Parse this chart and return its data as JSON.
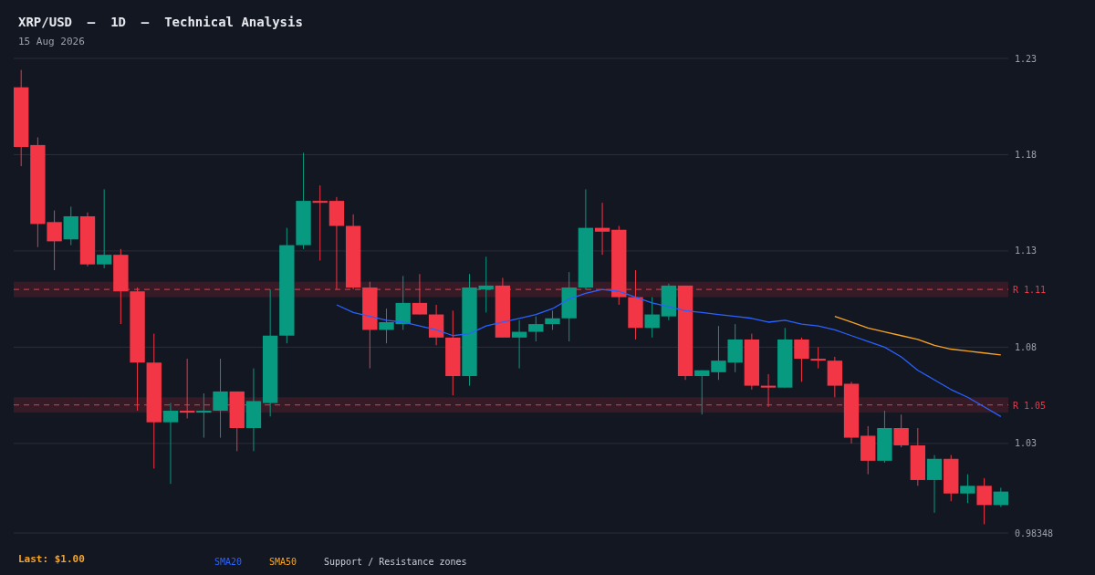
{
  "chart_data": {
    "type": "candlestick",
    "title": "XRP/USD  –  1D  –  Technical Analysis",
    "subtitle": "15 Aug 2026",
    "categories": [
      null,
      null,
      null,
      null,
      null,
      null,
      null,
      null,
      null,
      null,
      null,
      null,
      null,
      null,
      null,
      null,
      null,
      null,
      null,
      null,
      null,
      null,
      null,
      null,
      null,
      null,
      null,
      null,
      null,
      null,
      null,
      null,
      null,
      null,
      null,
      null,
      null,
      null,
      null,
      null,
      null,
      null,
      null,
      null,
      null,
      null,
      null,
      null,
      null,
      null,
      null,
      null,
      null,
      null,
      null,
      null,
      null,
      null,
      null,
      null
    ],
    "ohlc": [
      [
        1.215,
        1.224,
        1.174,
        1.184
      ],
      [
        1.185,
        1.189,
        1.132,
        1.144
      ],
      [
        1.145,
        1.151,
        1.12,
        1.135
      ],
      [
        1.136,
        1.153,
        1.133,
        1.148
      ],
      [
        1.148,
        1.15,
        1.122,
        1.123
      ],
      [
        1.123,
        1.162,
        1.121,
        1.128
      ],
      [
        1.128,
        1.131,
        1.092,
        1.109
      ],
      [
        1.109,
        1.111,
        1.047,
        1.072
      ],
      [
        1.072,
        1.087,
        1.017,
        1.041
      ],
      [
        1.041,
        1.051,
        1.009,
        1.047
      ],
      [
        1.047,
        1.074,
        1.043,
        1.046
      ],
      [
        1.046,
        1.056,
        1.033,
        1.047
      ],
      [
        1.047,
        1.074,
        1.033,
        1.057
      ],
      [
        1.057,
        1.057,
        1.026,
        1.038
      ],
      [
        1.038,
        1.069,
        1.026,
        1.052
      ],
      [
        1.051,
        1.11,
        1.044,
        1.086
      ],
      [
        1.086,
        1.142,
        1.082,
        1.133
      ],
      [
        1.133,
        1.181,
        1.131,
        1.156
      ],
      [
        1.156,
        1.164,
        1.125,
        1.155
      ],
      [
        1.156,
        1.158,
        1.11,
        1.143
      ],
      [
        1.143,
        1.149,
        1.11,
        1.111
      ],
      [
        1.111,
        1.114,
        1.069,
        1.089
      ],
      [
        1.089,
        1.1,
        1.082,
        1.093
      ],
      [
        1.092,
        1.117,
        1.089,
        1.103
      ],
      [
        1.103,
        1.118,
        1.097,
        1.097
      ],
      [
        1.097,
        1.102,
        1.081,
        1.085
      ],
      [
        1.085,
        1.099,
        1.055,
        1.065
      ],
      [
        1.065,
        1.118,
        1.06,
        1.111
      ],
      [
        1.11,
        1.127,
        1.098,
        1.112
      ],
      [
        1.112,
        1.116,
        1.085,
        1.085
      ],
      [
        1.085,
        1.094,
        1.069,
        1.088
      ],
      [
        1.088,
        1.096,
        1.083,
        1.092
      ],
      [
        1.092,
        1.099,
        1.089,
        1.095
      ],
      [
        1.095,
        1.119,
        1.083,
        1.111
      ],
      [
        1.111,
        1.162,
        1.11,
        1.142
      ],
      [
        1.142,
        1.155,
        1.128,
        1.14
      ],
      [
        1.141,
        1.143,
        1.102,
        1.106
      ],
      [
        1.106,
        1.12,
        1.084,
        1.09
      ],
      [
        1.09,
        1.106,
        1.085,
        1.097
      ],
      [
        1.096,
        1.113,
        1.094,
        1.112
      ],
      [
        1.112,
        1.112,
        1.063,
        1.065
      ],
      [
        1.065,
        1.068,
        1.045,
        1.068
      ],
      [
        1.067,
        1.091,
        1.063,
        1.073
      ],
      [
        1.072,
        1.092,
        1.067,
        1.084
      ],
      [
        1.084,
        1.087,
        1.058,
        1.06
      ],
      [
        1.06,
        1.066,
        1.049,
        1.059
      ],
      [
        1.059,
        1.09,
        1.059,
        1.084
      ],
      [
        1.084,
        1.085,
        1.062,
        1.074
      ],
      [
        1.074,
        1.08,
        1.069,
        1.073
      ],
      [
        1.073,
        1.075,
        1.054,
        1.06
      ],
      [
        1.061,
        1.062,
        1.03,
        1.033
      ],
      [
        1.034,
        1.039,
        1.014,
        1.021
      ],
      [
        1.021,
        1.047,
        1.02,
        1.038
      ],
      [
        1.038,
        1.045,
        1.028,
        1.029
      ],
      [
        1.029,
        1.038,
        1.008,
        1.011
      ],
      [
        1.011,
        1.024,
        0.994,
        1.022
      ],
      [
        1.022,
        1.024,
        1.0,
        1.004
      ],
      [
        1.004,
        1.014,
        0.999,
        1.008
      ],
      [
        1.008,
        1.012,
        0.988,
        0.998
      ],
      [
        0.998,
        1.007,
        0.997,
        1.005
      ]
    ],
    "colors": [
      "#f23645",
      "#f23645",
      "#f23645",
      "#089981",
      "#f23645",
      "#089981",
      "#f23645",
      "#f23645",
      "#f23645",
      "#089981",
      "#f23645",
      "#089981",
      "#089981",
      "#f23645",
      "#089981",
      "#089981",
      "#089981",
      "#089981",
      "#f23645",
      "#f23645",
      "#f23645",
      "#f23645",
      "#089981",
      "#089981",
      "#f23645",
      "#f23645",
      "#f23645",
      "#089981",
      "#089981",
      "#f23645",
      "#089981",
      "#089981",
      "#089981",
      "#089981",
      "#089981",
      "#f23645",
      "#f23645",
      "#f23645",
      "#089981",
      "#089981",
      "#f23645",
      "#089981",
      "#089981",
      "#089981",
      "#f23645",
      "#f23645",
      "#089981",
      "#f23645",
      "#f23645",
      "#f23645",
      "#f23645",
      "#f23645",
      "#089981",
      "#f23645",
      "#f23645",
      "#089981",
      "#f23645",
      "#089981",
      "#f23645",
      "#089981"
    ],
    "series": [
      {
        "type": "line",
        "name": "SMA20",
        "color": "#2962ff",
        "values": [
          null,
          null,
          null,
          null,
          null,
          null,
          null,
          null,
          null,
          null,
          null,
          null,
          null,
          null,
          null,
          null,
          null,
          null,
          null,
          1.102,
          1.098,
          1.096,
          1.094,
          1.093,
          1.091,
          1.089,
          1.086,
          1.087,
          1.091,
          1.093,
          1.095,
          1.097,
          1.1,
          1.105,
          1.108,
          1.11,
          1.109,
          1.106,
          1.103,
          1.101,
          1.099,
          1.098,
          1.097,
          1.096,
          1.095,
          1.093,
          1.094,
          1.092,
          1.091,
          1.089,
          1.086,
          1.083,
          1.08,
          1.075,
          1.068,
          1.063,
          1.058,
          1.054,
          1.049,
          1.044
        ]
      },
      {
        "type": "line",
        "name": "SMA50",
        "color": "#f7a325",
        "values": [
          null,
          null,
          null,
          null,
          null,
          null,
          null,
          null,
          null,
          null,
          null,
          null,
          null,
          null,
          null,
          null,
          null,
          null,
          null,
          null,
          null,
          null,
          null,
          null,
          null,
          null,
          null,
          null,
          null,
          null,
          null,
          null,
          null,
          null,
          null,
          null,
          null,
          null,
          null,
          null,
          null,
          null,
          null,
          null,
          null,
          null,
          null,
          null,
          null,
          1.096,
          1.093,
          1.09,
          1.088,
          1.086,
          1.084,
          1.081,
          1.079,
          1.078,
          1.077,
          1.076
        ]
      }
    ],
    "ylim": [
      0.98348,
      1.23
    ],
    "yticks": [
      1.23,
      1.18,
      1.13,
      1.08,
      1.03,
      0.98348
    ],
    "grid": "y",
    "tick_labels": "y",
    "legend": "bottom",
    "marker": "none",
    "ref_lines": [
      {
        "axis": "y",
        "value": 1.11,
        "label": "R 1.11",
        "color": "#f23645",
        "line_style": "dashed"
      },
      {
        "axis": "y",
        "value": 1.05,
        "label": "R 1.05",
        "color": "#f23645",
        "line_style": "dashed"
      }
    ],
    "bands": [
      {
        "axis": "y",
        "from": 1.106,
        "to": 1.114,
        "color": "#361b27"
      },
      {
        "axis": "y",
        "from": 1.046,
        "to": 1.054,
        "color": "#361b27"
      }
    ],
    "annotations": [
      "Last: $1.00",
      "Support / Resistance zones"
    ]
  }
}
